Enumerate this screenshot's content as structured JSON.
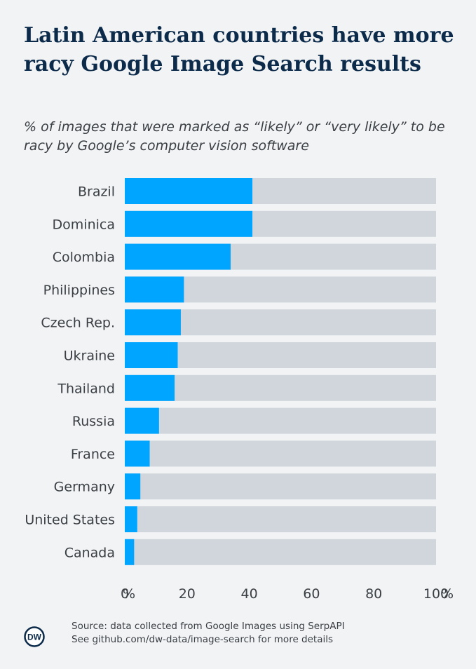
{
  "title": "Latin American countries have more racy Google Image Search results",
  "subtitle": "% of images that were marked as “likely” or “very likely” to be racy by Google’s computer vision software",
  "chart_data": {
    "type": "bar",
    "orientation": "horizontal",
    "categories": [
      "Brazil",
      "Dominica",
      "Colombia",
      "Philippines",
      "Czech Rep.",
      "Ukraine",
      "Thailand",
      "Russia",
      "France",
      "Germany",
      "United States",
      "Canada"
    ],
    "values": [
      41,
      41,
      34,
      19,
      18,
      17,
      16,
      11,
      8,
      5,
      4,
      3
    ],
    "xlim": [
      0,
      100
    ],
    "xticks": [
      "0",
      "20",
      "40",
      "60",
      "80",
      "100"
    ],
    "x_unit": "%",
    "colors": {
      "bar": "#00a5ff",
      "track": "#d0d6db"
    }
  },
  "footer": {
    "source": "Source: data collected from Google Images using SerpAPI",
    "details": "See github.com/dw-data/image-search for more details",
    "logo_text": "DW"
  }
}
